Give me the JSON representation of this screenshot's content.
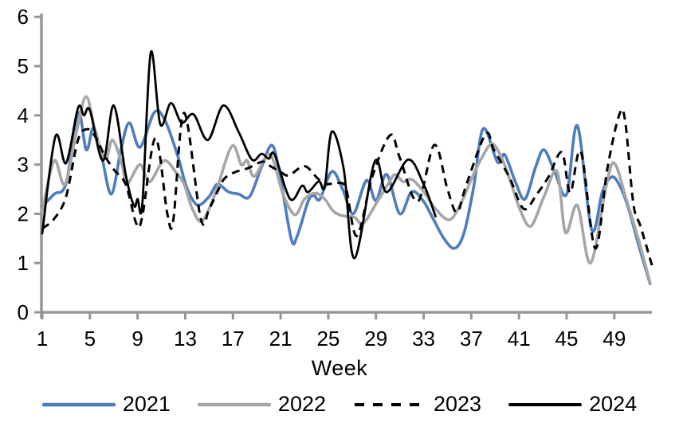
{
  "chart_data": {
    "type": "line",
    "title": "",
    "xlabel": "Week",
    "ylabel": "",
    "xlim": [
      1,
      52.3
    ],
    "ylim": [
      0,
      6
    ],
    "yticks": [
      0,
      1,
      2,
      3,
      4,
      5,
      6
    ],
    "xticks": [
      1,
      5,
      9,
      13,
      17,
      21,
      25,
      29,
      33,
      37,
      41,
      45,
      49
    ],
    "grid": false,
    "legend_position": "bottom",
    "axis_color": "#969696",
    "text_color": "#000000",
    "series": [
      {
        "name": "2021",
        "color": "#4d7dbd",
        "dash": false,
        "points": [
          [
            1,
            2.15
          ],
          [
            2,
            2.4
          ],
          [
            3,
            2.62
          ],
          [
            4,
            4.05
          ],
          [
            4.7,
            3.3
          ],
          [
            5.3,
            3.75
          ],
          [
            6,
            3.15
          ],
          [
            6.8,
            2.4
          ],
          [
            7.6,
            3.3
          ],
          [
            8.3,
            3.85
          ],
          [
            9.2,
            3.35
          ],
          [
            10.4,
            4.06
          ],
          [
            11.3,
            3.9
          ],
          [
            12.4,
            3.15
          ],
          [
            13.1,
            2.55
          ],
          [
            14,
            2.18
          ],
          [
            15,
            2.35
          ],
          [
            15.7,
            2.6
          ],
          [
            16.6,
            2.45
          ],
          [
            17.5,
            2.4
          ],
          [
            18.4,
            2.35
          ],
          [
            19.4,
            2.95
          ],
          [
            20.3,
            3.39
          ],
          [
            21,
            2.7
          ],
          [
            21.9,
            1.48
          ],
          [
            22.4,
            1.55
          ],
          [
            23.3,
            2.25
          ],
          [
            23.8,
            2.37
          ],
          [
            24.3,
            2.3
          ],
          [
            25.3,
            2.86
          ],
          [
            26.2,
            2.5
          ],
          [
            27.1,
            2.0
          ],
          [
            28.2,
            2.68
          ],
          [
            29,
            2.27
          ],
          [
            29.9,
            2.8
          ],
          [
            31,
            2.0
          ],
          [
            32,
            2.45
          ],
          [
            33,
            2.25
          ],
          [
            33.8,
            1.9
          ],
          [
            34.7,
            1.5
          ],
          [
            35.6,
            1.3
          ],
          [
            36.4,
            1.62
          ],
          [
            37.2,
            2.55
          ],
          [
            38,
            3.73
          ],
          [
            39.2,
            3.05
          ],
          [
            39.8,
            3.2
          ],
          [
            40.7,
            2.65
          ],
          [
            41.5,
            2.3
          ],
          [
            42.4,
            2.95
          ],
          [
            43.1,
            3.3
          ],
          [
            44,
            2.85
          ],
          [
            45,
            2.4
          ],
          [
            45.9,
            3.79
          ],
          [
            47.1,
            1.68
          ],
          [
            48,
            2.45
          ],
          [
            48.8,
            2.75
          ],
          [
            49.5,
            2.55
          ],
          [
            50.2,
            2.1
          ],
          [
            51,
            1.4
          ],
          [
            52,
            0.58
          ]
        ]
      },
      {
        "name": "2022",
        "color": "#a6a6a6",
        "dash": false,
        "points": [
          [
            1,
            2.05
          ],
          [
            2,
            3.08
          ],
          [
            2.9,
            2.6
          ],
          [
            3.9,
            3.7
          ],
          [
            4.7,
            4.38
          ],
          [
            5.5,
            3.62
          ],
          [
            6.3,
            3.12
          ],
          [
            6.9,
            3.5
          ],
          [
            7.7,
            3.0
          ],
          [
            8.1,
            2.6
          ],
          [
            9.2,
            3.0
          ],
          [
            10,
            2.65
          ],
          [
            11.2,
            3.08
          ],
          [
            12.2,
            2.85
          ],
          [
            12.9,
            2.6
          ],
          [
            13.6,
            2.1
          ],
          [
            14.4,
            1.85
          ],
          [
            15.5,
            2.4
          ],
          [
            16.9,
            3.37
          ],
          [
            17.7,
            3.0
          ],
          [
            18.2,
            3.08
          ],
          [
            18.8,
            2.76
          ],
          [
            20.1,
            3.21
          ],
          [
            21.2,
            2.4
          ],
          [
            22.2,
            1.98
          ],
          [
            23,
            2.3
          ],
          [
            23.9,
            2.42
          ],
          [
            24.7,
            2.3
          ],
          [
            25.4,
            2.06
          ],
          [
            26.2,
            1.96
          ],
          [
            27.2,
            1.93
          ],
          [
            27.9,
            1.8
          ],
          [
            29,
            2.2
          ],
          [
            30,
            2.6
          ],
          [
            30.6,
            2.8
          ],
          [
            31.3,
            2.65
          ],
          [
            32,
            2.7
          ],
          [
            33,
            2.45
          ],
          [
            34,
            2.1
          ],
          [
            35.2,
            1.88
          ],
          [
            36.2,
            2.25
          ],
          [
            37,
            2.7
          ],
          [
            37.8,
            3.1
          ],
          [
            38.7,
            3.42
          ],
          [
            39.5,
            3.16
          ],
          [
            40.3,
            2.65
          ],
          [
            41.1,
            2.08
          ],
          [
            42,
            1.75
          ],
          [
            43.1,
            2.35
          ],
          [
            44.2,
            2.86
          ],
          [
            44.9,
            1.62
          ],
          [
            45.9,
            2.17
          ],
          [
            47,
            1.0
          ],
          [
            48.3,
            2.55
          ],
          [
            49,
            3.03
          ],
          [
            50,
            2.3
          ],
          [
            51,
            1.5
          ],
          [
            52,
            0.6
          ]
        ]
      },
      {
        "name": "2023",
        "color": "#000000",
        "dash": true,
        "points": [
          [
            1,
            1.7
          ],
          [
            2,
            1.9
          ],
          [
            3,
            2.35
          ],
          [
            4,
            3.5
          ],
          [
            4.8,
            3.72
          ],
          [
            5.5,
            3.55
          ],
          [
            6.2,
            3.2
          ],
          [
            7,
            2.9
          ],
          [
            8,
            2.6
          ],
          [
            8.9,
            1.8
          ],
          [
            9.4,
            1.95
          ],
          [
            10.5,
            3.54
          ],
          [
            11.5,
            2.0
          ],
          [
            12,
            1.88
          ],
          [
            12.9,
            4.05
          ],
          [
            14.3,
            1.9
          ],
          [
            15,
            2.1
          ],
          [
            15.7,
            2.45
          ],
          [
            16.3,
            2.72
          ],
          [
            17.2,
            2.85
          ],
          [
            18.2,
            2.92
          ],
          [
            19.5,
            3.06
          ],
          [
            20.2,
            2.96
          ],
          [
            21,
            2.85
          ],
          [
            21.7,
            2.78
          ],
          [
            23,
            2.97
          ],
          [
            24.1,
            2.72
          ],
          [
            24.8,
            2.6
          ],
          [
            25.8,
            2.63
          ],
          [
            26.5,
            2.5
          ],
          [
            27.4,
            1.55
          ],
          [
            28.7,
            2.76
          ],
          [
            30.2,
            3.6
          ],
          [
            31,
            3.14
          ],
          [
            32.5,
            2.25
          ],
          [
            33.9,
            3.4
          ],
          [
            35,
            2.5
          ],
          [
            35.8,
            2.03
          ],
          [
            36.6,
            2.6
          ],
          [
            38.2,
            3.62
          ],
          [
            38.9,
            3.3
          ],
          [
            40.2,
            2.74
          ],
          [
            41.4,
            2.1
          ],
          [
            42.5,
            2.4
          ],
          [
            43.5,
            2.76
          ],
          [
            44.6,
            3.25
          ],
          [
            45.3,
            2.43
          ],
          [
            46.2,
            3.26
          ],
          [
            47.4,
            1.3
          ],
          [
            48.4,
            2.9
          ],
          [
            49.4,
            4.0
          ],
          [
            49.9,
            3.9
          ],
          [
            50.6,
            2.2
          ],
          [
            51.2,
            1.75
          ],
          [
            52.2,
            0.92
          ]
        ]
      },
      {
        "name": "2024",
        "color": "#000000",
        "dash": false,
        "points": [
          [
            1,
            1.6
          ],
          [
            2.1,
            3.57
          ],
          [
            3,
            3.03
          ],
          [
            4,
            4.15
          ],
          [
            4.5,
            4.0
          ],
          [
            5,
            4.1
          ],
          [
            6.1,
            3.08
          ],
          [
            7,
            4.2
          ],
          [
            8,
            2.8
          ],
          [
            8.7,
            2.16
          ],
          [
            9,
            2.3
          ],
          [
            9.4,
            2.2
          ],
          [
            10.1,
            5.27
          ],
          [
            10.9,
            3.82
          ],
          [
            11.8,
            4.25
          ],
          [
            12.7,
            3.85
          ],
          [
            13.7,
            4.02
          ],
          [
            14.9,
            3.5
          ],
          [
            16.2,
            4.2
          ],
          [
            17.5,
            3.65
          ],
          [
            18.6,
            3.1
          ],
          [
            19.4,
            3.22
          ],
          [
            20,
            3.12
          ],
          [
            20.5,
            3.2
          ],
          [
            21.8,
            2.3
          ],
          [
            22.8,
            2.57
          ],
          [
            23.3,
            2.44
          ],
          [
            24.2,
            2.66
          ],
          [
            24.7,
            2.55
          ],
          [
            25.3,
            3.67
          ],
          [
            26.3,
            2.9
          ],
          [
            27.2,
            1.1
          ],
          [
            28.9,
            3.06
          ],
          [
            29.9,
            2.44
          ],
          [
            31.7,
            3.1
          ],
          [
            33,
            2.6
          ],
          [
            34,
            1.95
          ]
        ]
      }
    ]
  }
}
